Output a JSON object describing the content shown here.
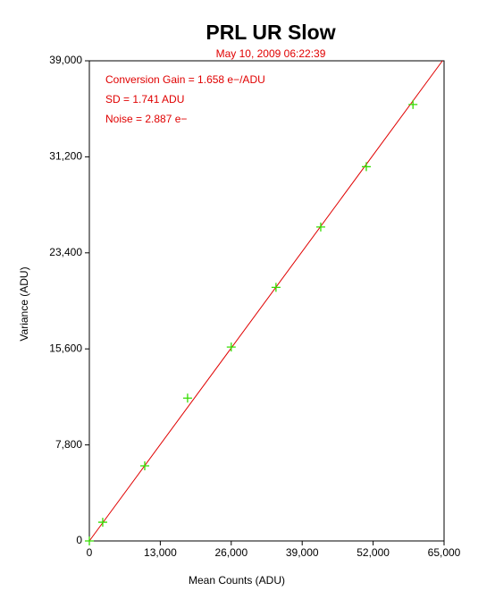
{
  "chart_data": {
    "type": "scatter",
    "title": "PRL UR Slow",
    "subtitle": "May 10, 2009  06:22:39",
    "annotations": [
      "Conversion Gain = 1.658 e−/ADU",
      "SD = 1.741 ADU",
      "Noise = 2.887 e−"
    ],
    "x_label": "Mean Counts (ADU)",
    "y_label": "Variance (ADU)",
    "xlim": [
      0,
      65000
    ],
    "ylim": [
      0,
      39000
    ],
    "xticks": [
      0,
      {
        "value": 13000,
        "label": "13,000"
      },
      {
        "value": 26000,
        "label": "26,000"
      },
      {
        "value": 39000,
        "label": "39,000"
      },
      {
        "value": 52000,
        "label": "52,000"
      },
      {
        "value": 65000,
        "label": "65,000"
      }
    ],
    "yticks": [
      0,
      {
        "value": 7800,
        "label": "7,800"
      },
      {
        "value": 15600,
        "label": "15,600"
      },
      {
        "value": 23400,
        "label": "23,400"
      },
      {
        "value": 31200,
        "label": "31,200"
      },
      {
        "value": 39000,
        "label": "39,000"
      }
    ],
    "points": {
      "color": "#33dd00",
      "x": [
        0,
        2450,
        10150,
        18000,
        26000,
        34200,
        42400,
        50750,
        59300
      ],
      "values": [
        0,
        1520,
        6100,
        11600,
        15750,
        20600,
        25500,
        30400,
        35450
      ]
    },
    "fit_line": {
      "color": "#e00000",
      "x": [
        0,
        64700
      ],
      "values": [
        0,
        39000
      ]
    }
  }
}
